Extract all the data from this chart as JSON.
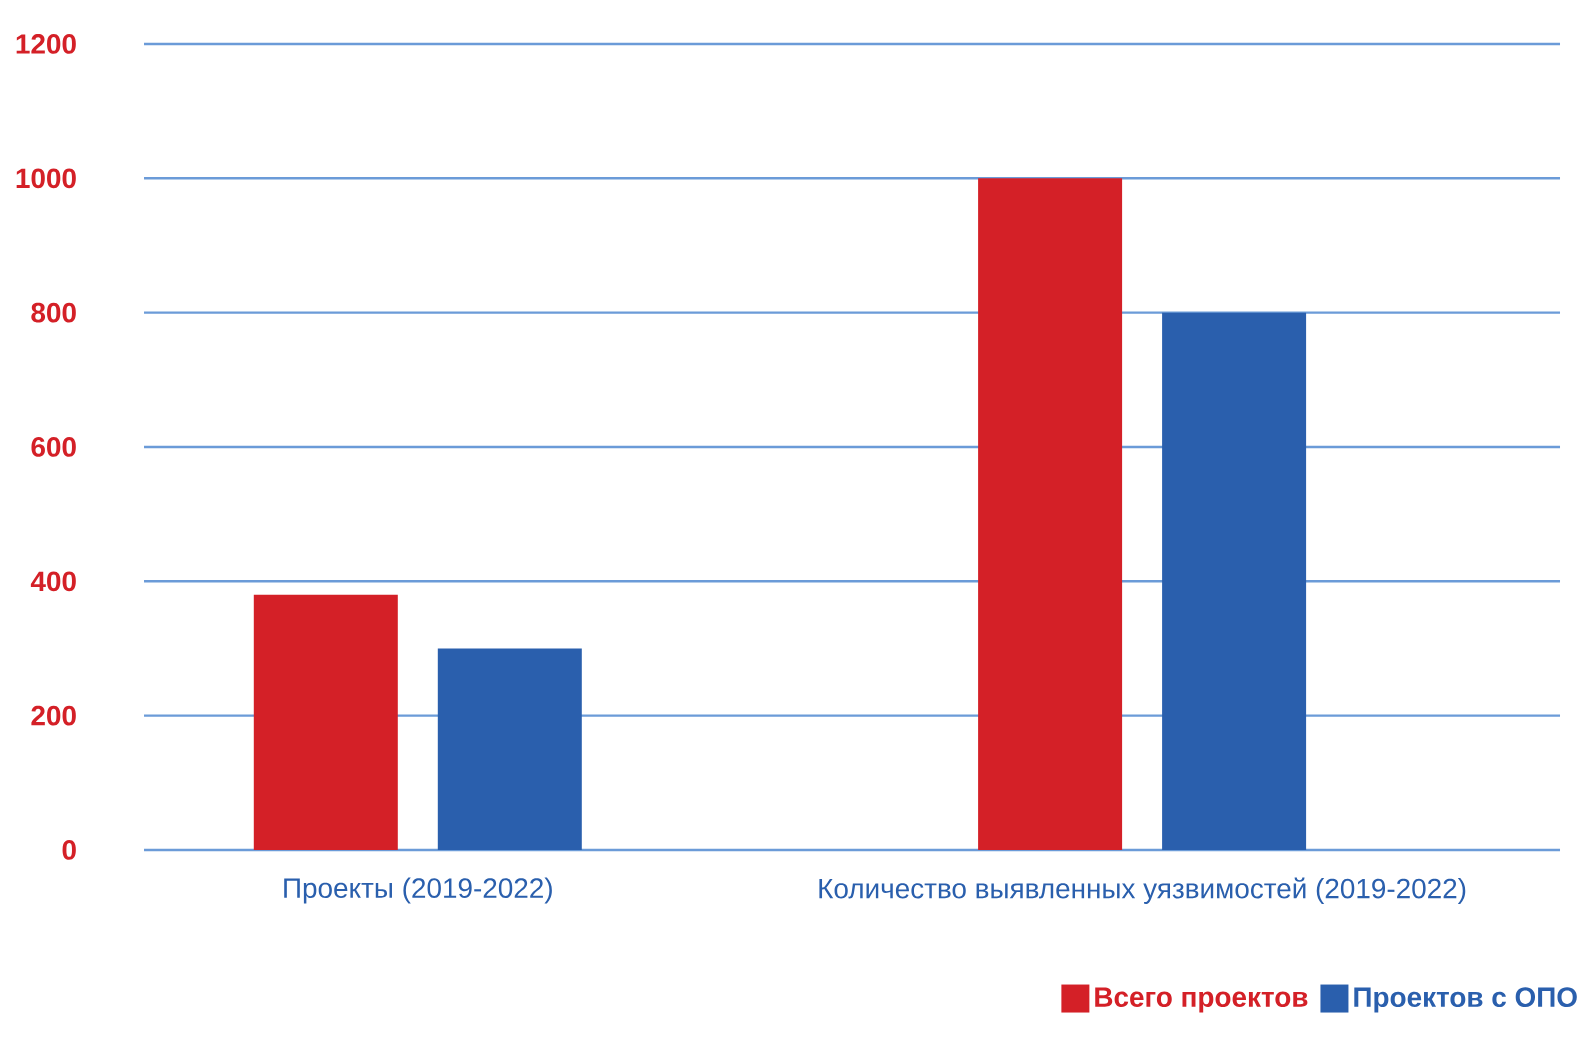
{
  "chart_data": {
    "type": "bar",
    "categories": [
      "Проекты (2019-2022)",
      "Количество выявленных уязвимостей (2019-2022)"
    ],
    "series": [
      {
        "name": "Всего проектов",
        "color": "#d42027",
        "values": [
          380,
          1000
        ]
      },
      {
        "name": "Проектов с ОПО",
        "color": "#2a5fad",
        "values": [
          300,
          800
        ]
      }
    ],
    "ylim": [
      0,
      1200
    ],
    "yticks": [
      0,
      200,
      400,
      600,
      800,
      1000,
      1200
    ],
    "grid": "y",
    "legend": "bottom right"
  }
}
